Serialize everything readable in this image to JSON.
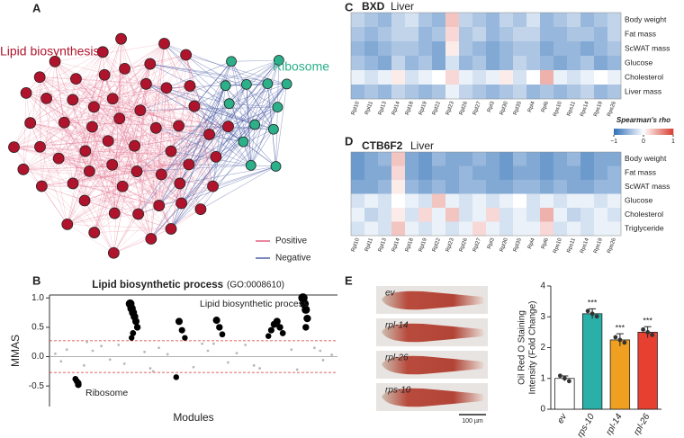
{
  "panel_labels": [
    "A",
    "B",
    "C",
    "D",
    "E"
  ],
  "network": {
    "groups": [
      {
        "name": "Lipid biosynthesis",
        "color": "#b0142c"
      },
      {
        "name": "Ribosome",
        "color": "#2bb08a"
      }
    ],
    "legend": [
      {
        "name": "Positive",
        "color": "#e06080"
      },
      {
        "name": "Negative",
        "color": "#5060a8"
      }
    ]
  },
  "worm_images": {
    "labels": [
      "ev",
      "rpl-14",
      "rpl-26",
      "rps-10"
    ],
    "scale_bar": "100 µm"
  },
  "chart_data": [
    {
      "type": "scatter",
      "title": "Lipid biosynthetic process",
      "subtitle": "(GO:0008610)",
      "xlabel": "Modules",
      "ylabel": "MMAS",
      "annotations": [
        "Lipid biosynthetic process",
        "Ribosome"
      ],
      "xlim": [
        0,
        100
      ],
      "ylim": [
        -0.85,
        1.05
      ],
      "yticks": [
        {
          "value": -0.5,
          "label": "-0.5"
        },
        {
          "value": 0,
          "label": "0.0"
        },
        {
          "value": 0.5,
          "label": "0.5"
        },
        {
          "value": 1,
          "label": "1.0"
        }
      ],
      "thresholds": [
        0.27,
        -0.27
      ],
      "threshold_color": "#d83030",
      "series": [
        {
          "color": "#b8b8b8",
          "x": [
            2,
            4,
            6,
            12,
            15,
            18,
            21,
            24,
            26,
            33,
            35,
            38,
            41,
            50,
            53,
            55,
            62,
            65,
            68,
            71,
            84,
            86,
            92,
            95,
            98,
            13,
            36,
            57,
            73,
            94
          ],
          "values": [
            0.05,
            -0.08,
            0.12,
            -0.15,
            0.1,
            0.18,
            -0.05,
            0.2,
            -0.12,
            0.08,
            -0.2,
            0.15,
            0.04,
            -0.18,
            0.22,
            0.1,
            -0.1,
            0.06,
            0.2,
            -0.15,
            0.12,
            -0.22,
            0.15,
            -0.06,
            0.03,
            0.25,
            -0.25,
            0.22,
            -0.2,
            0.1
          ]
        },
        {
          "color": "#000000",
          "x": [
            28,
            28.5,
            29,
            29.5,
            30,
            30.5,
            29,
            28.5,
            45,
            46,
            47,
            58,
            59,
            60,
            76,
            77,
            78,
            79,
            80,
            81,
            88,
            88.5,
            89,
            89.5,
            89,
            9,
            9.5,
            10,
            10,
            44
          ],
          "values": [
            0.9,
            0.82,
            0.75,
            0.68,
            0.6,
            0.5,
            0.4,
            0.32,
            0.6,
            0.45,
            0.32,
            0.62,
            0.5,
            0.38,
            0.35,
            0.45,
            0.55,
            0.6,
            0.5,
            0.4,
            1.0,
            0.9,
            0.8,
            0.65,
            0.5,
            -0.38,
            -0.42,
            -0.45,
            -0.48,
            -0.35
          ]
        }
      ]
    },
    {
      "type": "heatmap",
      "title": "BXD",
      "subtitle": "Liver",
      "rows": [
        "Body weight",
        "Fat mass",
        "ScWAT mass",
        "Glucose",
        "Cholesterol",
        "Liver mass"
      ],
      "columns": [
        "Rpl10",
        "Rpl11",
        "Rpl13",
        "Rpl14",
        "Rpl18",
        "Rpl19",
        "Rpl22",
        "Rpl23",
        "Rpl26",
        "Rpl27",
        "Rpl3",
        "Rpl30",
        "Rpl35",
        "Rpl4",
        "Rpl6",
        "Rps10",
        "Rps11",
        "Rps14",
        "Rps19",
        "Rps26"
      ],
      "values": [
        [
          -0.3,
          -0.4,
          -0.5,
          -0.3,
          -0.2,
          -0.4,
          -0.5,
          0.3,
          -0.3,
          -0.4,
          -0.5,
          -0.3,
          -0.4,
          -0.2,
          -0.5,
          -0.4,
          -0.3,
          -0.5,
          -0.4,
          -0.3
        ],
        [
          -0.4,
          -0.5,
          -0.4,
          -0.3,
          -0.3,
          -0.5,
          -0.4,
          0.2,
          -0.4,
          -0.3,
          -0.5,
          -0.4,
          -0.3,
          -0.3,
          -0.5,
          -0.5,
          -0.4,
          -0.4,
          -0.5,
          -0.3
        ],
        [
          -0.5,
          -0.6,
          -0.5,
          -0.4,
          -0.4,
          -0.5,
          -0.6,
          0.1,
          -0.4,
          -0.5,
          -0.6,
          -0.5,
          -0.4,
          -0.4,
          -0.6,
          -0.5,
          -0.5,
          -0.6,
          -0.5,
          -0.4
        ],
        [
          -0.4,
          -0.5,
          -0.6,
          -0.3,
          -0.5,
          -0.4,
          -0.6,
          -0.2,
          -0.5,
          -0.4,
          -0.6,
          -0.5,
          -0.3,
          -0.4,
          -0.5,
          -0.6,
          -0.5,
          -0.4,
          -0.6,
          -0.5
        ],
        [
          -0.1,
          -0.2,
          -0.1,
          0.1,
          -0.2,
          -0.1,
          0.0,
          0.2,
          -0.1,
          -0.2,
          -0.1,
          0.1,
          -0.2,
          0.0,
          0.4,
          -0.1,
          -0.2,
          -0.1,
          0.0,
          -0.1
        ],
        [
          -0.5,
          -0.4,
          -0.5,
          -0.3,
          -0.4,
          -0.5,
          -0.4,
          -0.1,
          -0.3,
          -0.4,
          -0.5,
          -0.4,
          -0.3,
          -0.5,
          -0.4,
          -0.5,
          -0.4,
          -0.3,
          -0.5,
          -0.4
        ]
      ],
      "zlim": [
        -1,
        1
      ],
      "colors": {
        "low": "#2f6fb8",
        "mid": "#ffffff",
        "high": "#d83c30"
      },
      "colorbar": {
        "title": "Spearman's rho",
        "ticks": [
          {
            "value": -1,
            "label": "−1"
          },
          0,
          1
        ]
      }
    },
    {
      "type": "heatmap",
      "title": "CTB6F2",
      "subtitle": "Liver",
      "rows": [
        "Body weight",
        "Fat mass",
        "ScWAT mass",
        "Glucose",
        "Cholesterol",
        "Triglyceride"
      ],
      "columns": [
        "Rpl10",
        "Rpl11",
        "Rpl13",
        "Rpl14",
        "Rpl18",
        "Rpl19",
        "Rpl22",
        "Rpl23",
        "Rpl26",
        "Rpl27",
        "Rpl3",
        "Rpl30",
        "Rpl35",
        "Rpl4",
        "Rpl6",
        "Rps10",
        "Rps11",
        "Rps14",
        "Rps19",
        "Rps26"
      ],
      "values": [
        [
          -0.7,
          -0.6,
          -0.5,
          0.3,
          -0.6,
          -0.7,
          -0.5,
          -0.6,
          -0.6,
          -0.5,
          -0.6,
          -0.7,
          -0.5,
          -0.6,
          -0.7,
          -0.6,
          -0.5,
          -0.7,
          -0.6,
          -0.6
        ],
        [
          -0.7,
          -0.6,
          -0.6,
          0.2,
          -0.6,
          -0.7,
          -0.6,
          -0.6,
          -0.5,
          -0.6,
          -0.6,
          -0.7,
          -0.6,
          -0.6,
          -0.7,
          -0.6,
          -0.6,
          -0.7,
          -0.6,
          -0.5
        ],
        [
          -0.6,
          -0.6,
          -0.5,
          0.1,
          -0.5,
          -0.6,
          -0.5,
          -0.6,
          -0.5,
          -0.5,
          -0.6,
          -0.6,
          -0.5,
          -0.5,
          -0.6,
          -0.5,
          -0.6,
          -0.6,
          -0.5,
          -0.5
        ],
        [
          -0.2,
          -0.1,
          -0.2,
          0.0,
          -0.1,
          -0.2,
          0.3,
          -0.1,
          -0.2,
          -0.1,
          -0.2,
          -0.1,
          0.0,
          -0.2,
          -0.1,
          -0.2,
          -0.1,
          -0.1,
          -0.2,
          -0.1
        ],
        [
          -0.1,
          -0.3,
          -0.2,
          0.1,
          -0.2,
          0.2,
          -0.1,
          0.3,
          -0.2,
          -0.1,
          0.2,
          -0.2,
          -0.1,
          -0.2,
          0.4,
          -0.1,
          -0.3,
          -0.2,
          -0.1,
          -0.2
        ],
        [
          -0.2,
          -0.1,
          -0.2,
          0.3,
          -0.1,
          -0.2,
          -0.1,
          -0.2,
          -0.1,
          0.2,
          -0.1,
          -0.2,
          -0.1,
          -0.1,
          0.2,
          -0.2,
          -0.1,
          -0.2,
          -0.1,
          -0.1
        ]
      ],
      "zlim": [
        -1,
        1
      ],
      "colors": {
        "low": "#2f6fb8",
        "mid": "#ffffff",
        "high": "#d83c30"
      }
    },
    {
      "type": "bar",
      "categories": [
        "ev",
        "rps-10",
        "rpl-14",
        "rpl-26"
      ],
      "values": [
        1.0,
        3.1,
        2.25,
        2.5
      ],
      "errors": [
        0.08,
        0.16,
        0.2,
        0.18
      ],
      "colors": [
        "#ffffff",
        "#2ab0a8",
        "#f0a020",
        "#e84030"
      ],
      "significance": [
        null,
        "***",
        "***",
        "***"
      ],
      "ylabel": [
        "Oil Red O Staining",
        "Intensity (Fold Change)"
      ],
      "ylim": [
        0,
        4
      ],
      "yticks": [
        0,
        1,
        2,
        3,
        4
      ]
    }
  ]
}
